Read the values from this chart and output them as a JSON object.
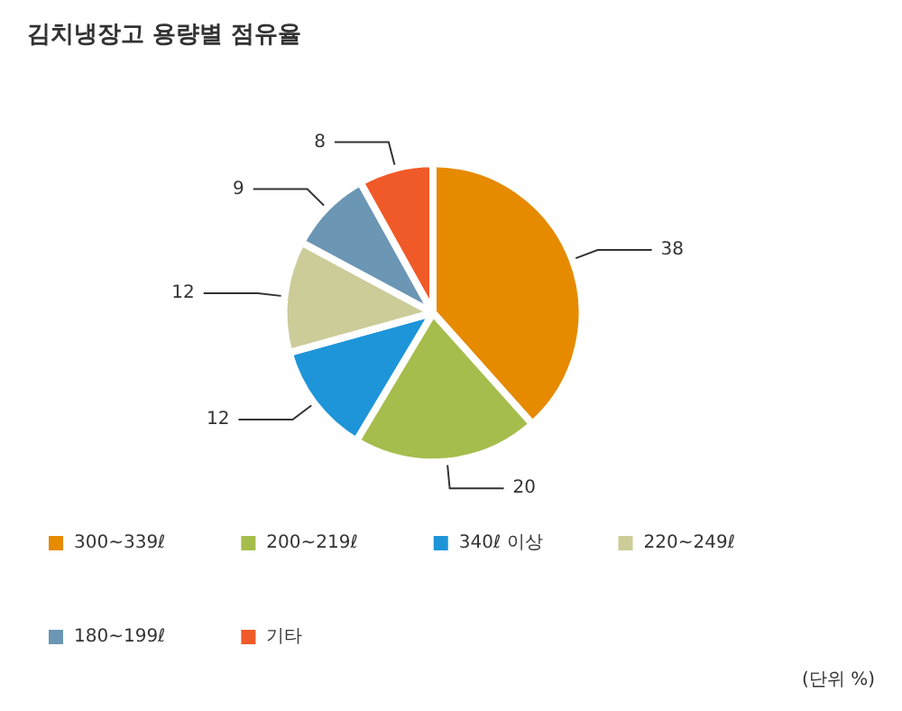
{
  "chart_data": {
    "type": "pie",
    "title": "김치냉장고 용량별 점유율",
    "categories": [
      "300~339ℓ",
      "200~219ℓ",
      "340ℓ 이상",
      "220~249ℓ",
      "180~199ℓ",
      "기타"
    ],
    "values": [
      38,
      20,
      12,
      12,
      9,
      8
    ],
    "colors": [
      "#e68a00",
      "#a5bd4c",
      "#1e95d9",
      "#cccc99",
      "#6b96b4",
      "#f05a28"
    ],
    "data_labels": true,
    "legend": "bottom",
    "annotations": [
      "(단위 %)"
    ]
  }
}
